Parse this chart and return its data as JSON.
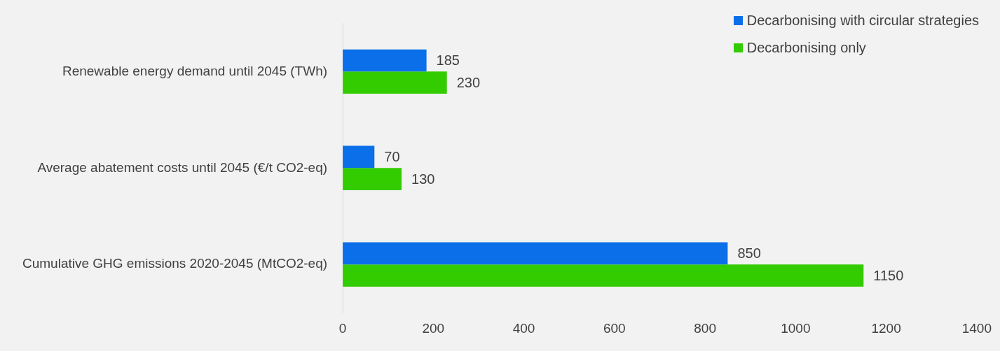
{
  "chart_data": {
    "type": "bar",
    "orientation": "horizontal",
    "categories": [
      "Renewable energy demand until 2045 (TWh)",
      "Average abatement costs until 2045 (€/t CO2-eq)",
      "Cumulative GHG emissions 2020-2045 (MtCO2-eq)"
    ],
    "series": [
      {
        "name": "Decarbonising with circular strategies",
        "color": "#0a6fe8",
        "values": [
          185,
          70,
          850
        ]
      },
      {
        "name": "Decarbonising only",
        "color": "#33cc00",
        "values": [
          230,
          130,
          1150
        ]
      }
    ],
    "xlim": [
      0,
      1400
    ],
    "xticks": [
      0,
      200,
      400,
      600,
      800,
      1000,
      1200,
      1400
    ],
    "data_labels": true,
    "grid": false,
    "legend": "top right"
  }
}
